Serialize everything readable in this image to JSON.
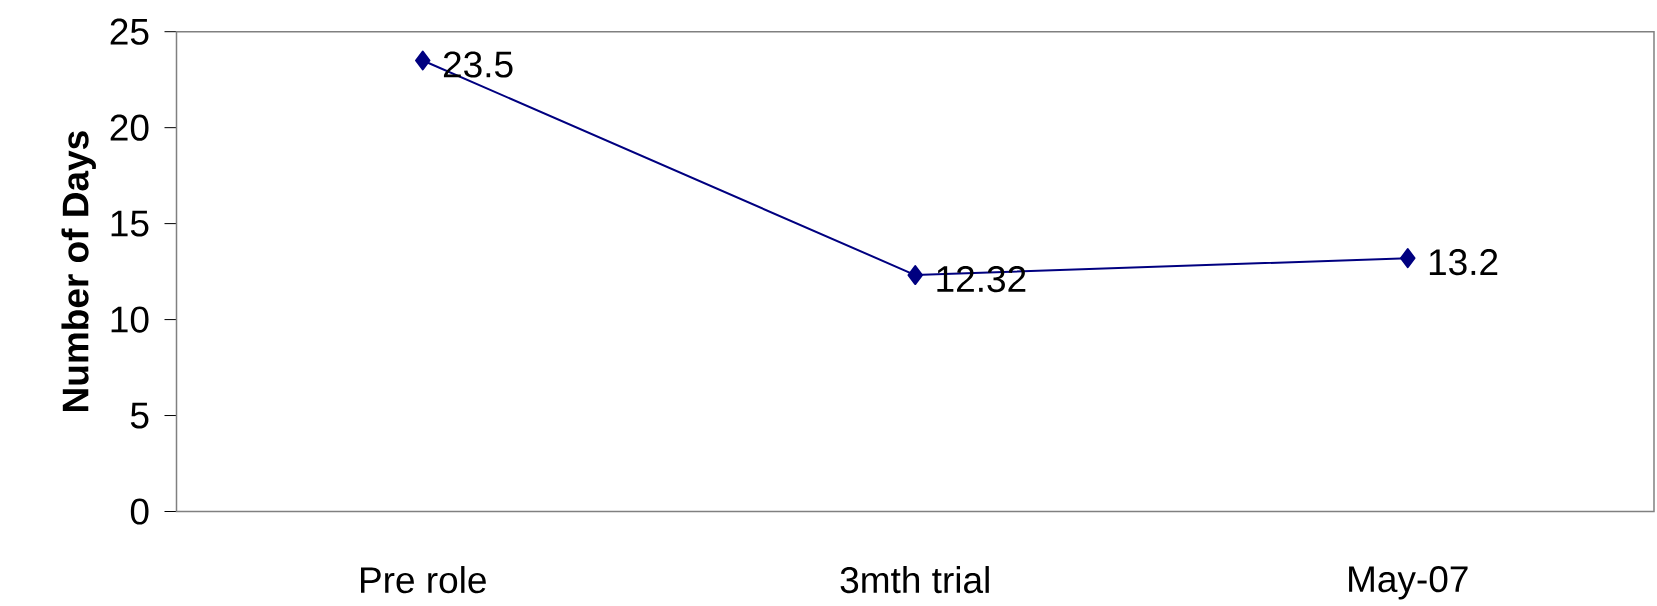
{
  "chart_data": {
    "type": "line",
    "ylabel": "Number of Days",
    "categories": [
      "Pre role",
      "3mth trial",
      "May-07"
    ],
    "series": [
      {
        "color": "#000080",
        "values": [
          23.5,
          12.32,
          13.2
        ]
      }
    ],
    "ylim": [
      0,
      25
    ],
    "yticks": [
      0,
      5,
      10,
      15,
      20,
      25
    ],
    "marker": "diamond",
    "data_labels": true,
    "grid": false
  }
}
